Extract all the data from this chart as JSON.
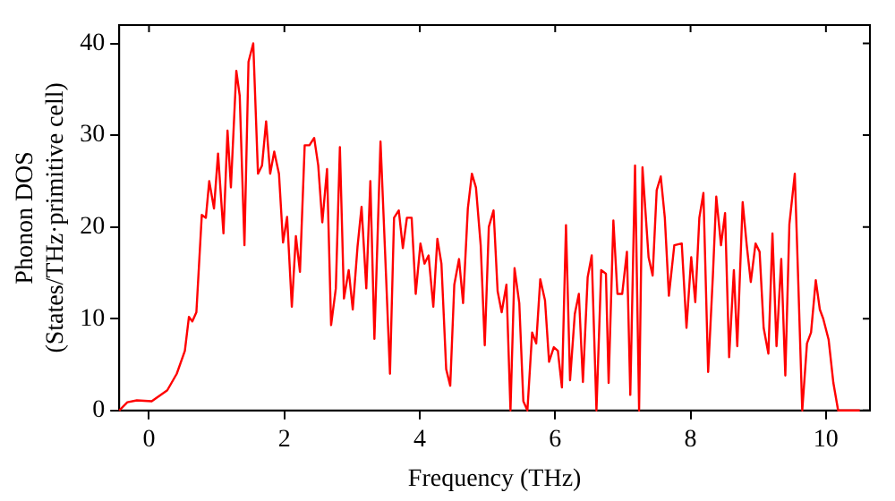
{
  "chart_data": {
    "type": "line",
    "xlabel": "Frequency (THz)",
    "ylabel": "Phonon DOS\n(States/THz·primitive cell)",
    "xlim": [
      -0.44,
      10.65
    ],
    "ylim": [
      0,
      42
    ],
    "xticks": [
      0,
      2,
      4,
      6,
      8,
      10
    ],
    "yticks": [
      0,
      10,
      20,
      30,
      40
    ],
    "grid": false,
    "legend": false,
    "marker": "none",
    "line_style": "solid",
    "series": [
      {
        "color": "#ff0000",
        "x": [
          -0.44,
          -0.32,
          -0.18,
          0.04,
          0.27,
          0.41,
          0.53,
          0.59,
          0.64,
          0.7,
          0.78,
          0.84,
          0.89,
          0.96,
          1.02,
          1.1,
          1.16,
          1.21,
          1.29,
          1.34,
          1.41,
          1.47,
          1.54,
          1.61,
          1.67,
          1.73,
          1.79,
          1.85,
          1.92,
          1.98,
          2.04,
          2.11,
          2.17,
          2.23,
          2.3,
          2.37,
          2.44,
          2.5,
          2.56,
          2.63,
          2.69,
          2.76,
          2.82,
          2.88,
          2.95,
          3.01,
          3.08,
          3.14,
          3.21,
          3.27,
          3.33,
          3.42,
          3.5,
          3.56,
          3.62,
          3.69,
          3.75,
          3.81,
          3.88,
          3.94,
          4.01,
          4.07,
          4.13,
          4.2,
          4.26,
          4.32,
          4.39,
          4.45,
          4.51,
          4.58,
          4.64,
          4.71,
          4.77,
          4.83,
          4.9,
          4.96,
          5.02,
          5.09,
          5.15,
          5.21,
          5.28,
          5.34,
          5.4,
          5.47,
          5.53,
          5.59,
          5.66,
          5.72,
          5.78,
          5.85,
          5.91,
          5.98,
          6.04,
          6.1,
          6.16,
          6.22,
          6.29,
          6.35,
          6.41,
          6.48,
          6.54,
          6.61,
          6.68,
          6.75,
          6.79,
          6.86,
          6.92,
          6.99,
          7.06,
          7.11,
          7.18,
          7.24,
          7.29,
          7.38,
          7.44,
          7.5,
          7.56,
          7.62,
          7.68,
          7.76,
          7.87,
          7.94,
          8.01,
          8.07,
          8.13,
          8.19,
          8.26,
          8.33,
          8.38,
          8.45,
          8.51,
          8.57,
          8.64,
          8.69,
          8.77,
          8.83,
          8.89,
          8.96,
          9.02,
          9.08,
          9.15,
          9.21,
          9.27,
          9.34,
          9.4,
          9.46,
          9.54,
          9.59,
          9.65,
          9.72,
          9.78,
          9.85,
          9.91,
          9.96,
          10.04,
          10.11,
          10.18,
          10.5
        ],
        "values": [
          0,
          0.9,
          1.1,
          1,
          2.2,
          4,
          6.5,
          10.2,
          9.7,
          10.7,
          21.3,
          21,
          25,
          22,
          28,
          19.3,
          30.5,
          24.3,
          37,
          34.3,
          18,
          38,
          40,
          25.8,
          26.7,
          31.5,
          25.8,
          28.2,
          25.8,
          18.3,
          21.1,
          11.3,
          19,
          15.1,
          28.9,
          28.9,
          29.7,
          26.7,
          20.5,
          26.3,
          9.3,
          13.3,
          28.7,
          12.2,
          15.3,
          11,
          17.8,
          22.2,
          13.3,
          25,
          7.8,
          29.3,
          15,
          4,
          21,
          21.8,
          17.7,
          21,
          21,
          12.7,
          18.2,
          16,
          16.9,
          11.3,
          18.7,
          16,
          4.5,
          2.7,
          13.7,
          16.5,
          11.7,
          22,
          25.8,
          24.3,
          18,
          7.1,
          20,
          21.8,
          13,
          10.7,
          13.7,
          0,
          15.5,
          11.7,
          1,
          0,
          8.5,
          7.3,
          14.3,
          12,
          5.3,
          6.9,
          6.5,
          2.5,
          20.2,
          3.3,
          10.5,
          12.7,
          3.1,
          14.5,
          16.9,
          0,
          15.3,
          14.9,
          3,
          20.7,
          12.7,
          12.7,
          17.3,
          1.7,
          26.7,
          0,
          26.5,
          16.7,
          14.7,
          24,
          25.5,
          21,
          12.5,
          18,
          18.2,
          9,
          16.7,
          11.8,
          21,
          23.7,
          4.2,
          14.7,
          23.3,
          18,
          21.5,
          5.8,
          15.3,
          7,
          22.7,
          18,
          14,
          18.2,
          17.3,
          9,
          6.2,
          19.3,
          7,
          16.5,
          3.8,
          20.3,
          25.8,
          14.3,
          0,
          7.3,
          8.5,
          14.2,
          11,
          10,
          7.7,
          3,
          0,
          0
        ]
      }
    ]
  }
}
